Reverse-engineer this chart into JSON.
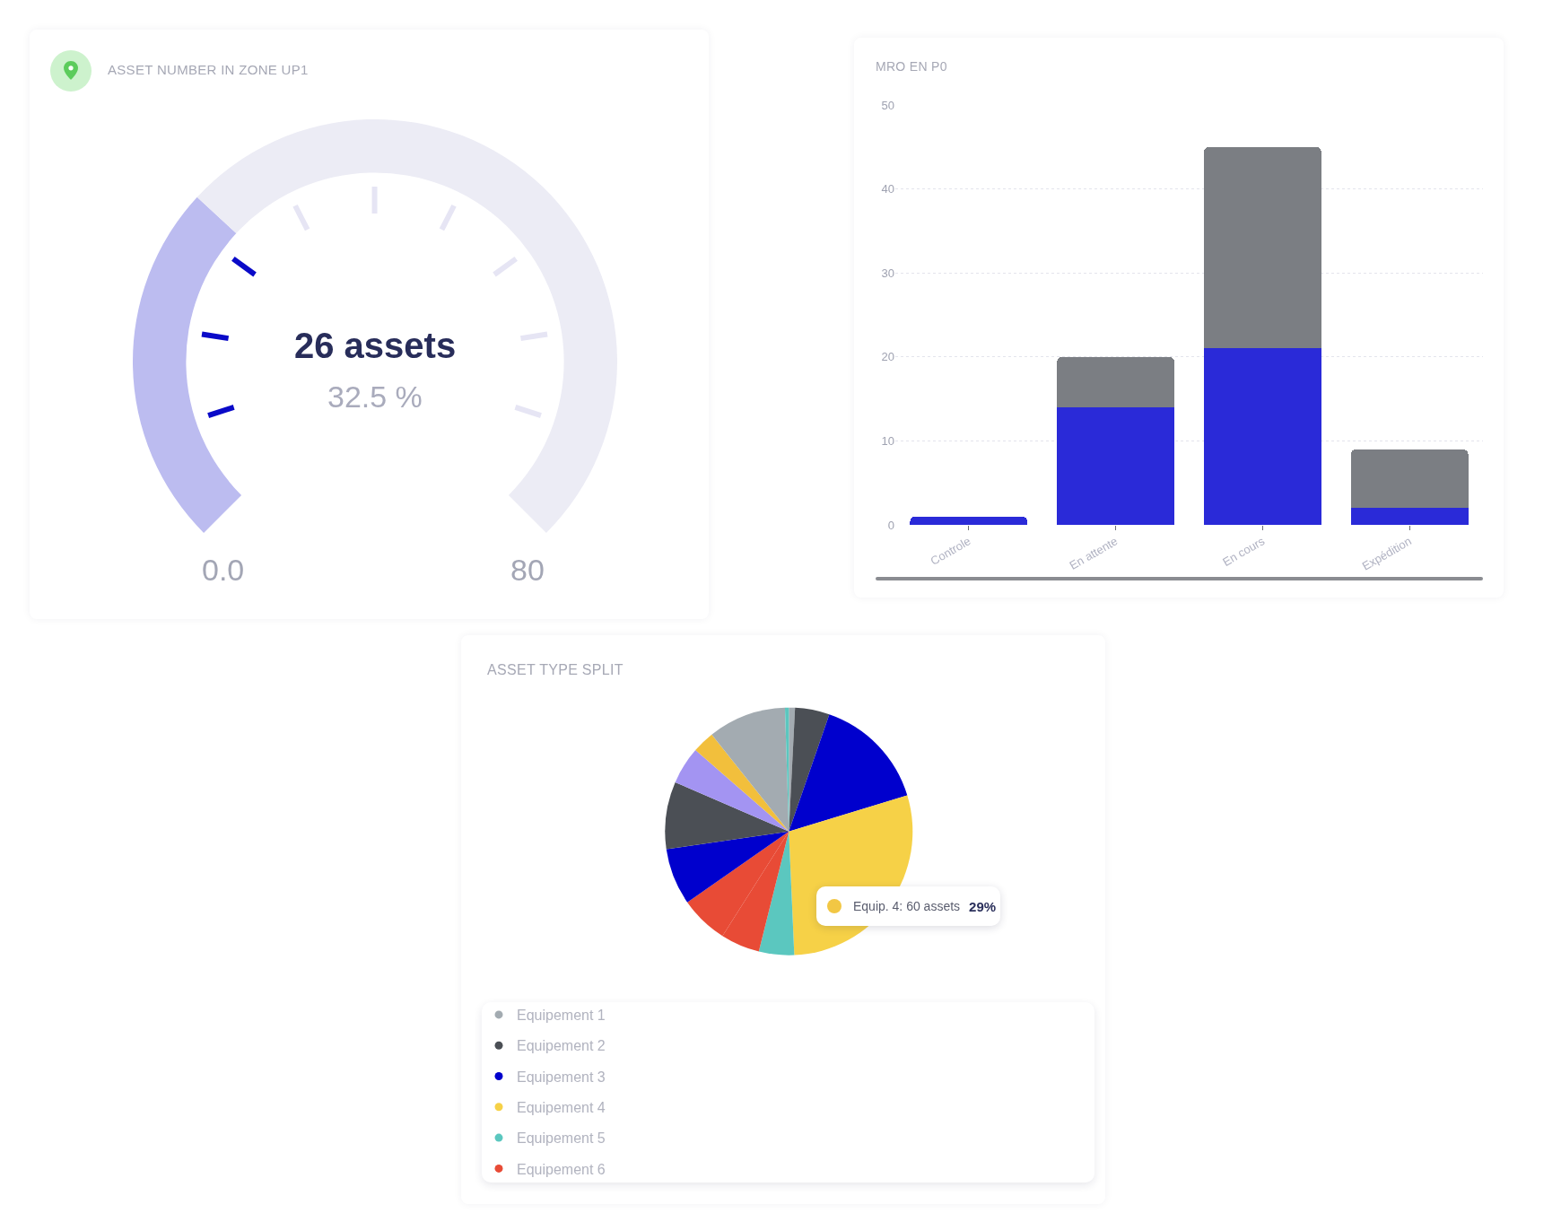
{
  "chart_data": [
    {
      "type": "donut",
      "title": "ASSET NUMBER IN ZONE UP1",
      "categories": [
        null,
        null
      ],
      "values": [
        32.5,
        67.5
      ],
      "colors": [
        "#bcbcf0",
        "#ececf5"
      ],
      "annotations": [
        "26 assets",
        "32.5 %",
        "0.0",
        "80"
      ]
    },
    {
      "type": "bar",
      "title": "MRO EN P0",
      "categories": [
        "Controle",
        "En attente",
        "En cours",
        "Expédition"
      ],
      "stacked": true,
      "series": [
        {
          "color": "#2a2ad8",
          "values": [
            1,
            14,
            21,
            2
          ]
        },
        {
          "color": "#7b7e83",
          "values": [
            0,
            6,
            24,
            7
          ]
        }
      ],
      "ylim": [
        0,
        50
      ],
      "yticks": [
        0,
        10,
        20,
        30,
        40,
        50
      ],
      "grid": "y"
    },
    {
      "type": "pie",
      "title": "ASSET TYPE SPLIT",
      "categories": [
        "Equipement 1",
        "Equipement 2",
        "Equipement 3",
        "Equipement 4",
        "Equipement 5",
        "Equipement 6",
        null,
        null,
        null,
        null,
        null,
        null,
        null
      ],
      "values": [
        0.8,
        4.5,
        15,
        29,
        4.6,
        5.1,
        6.3,
        7.4,
        8.8,
        4.9,
        2.9,
        10.2,
        0.5
      ],
      "colors": [
        "#a3abb1",
        "#4b4f55",
        "#0000cd",
        "#f6d147",
        "#5bc7bf",
        "#e84b36",
        "#e84b36",
        "#0000cd",
        "#4b4f55",
        "#a394f2",
        "#f2bf3c",
        "#a3abb1",
        "#5bc7bf"
      ],
      "legend": "bottom",
      "annotations": [
        "Equip. 4: 60 assets",
        "29%"
      ]
    }
  ]
}
